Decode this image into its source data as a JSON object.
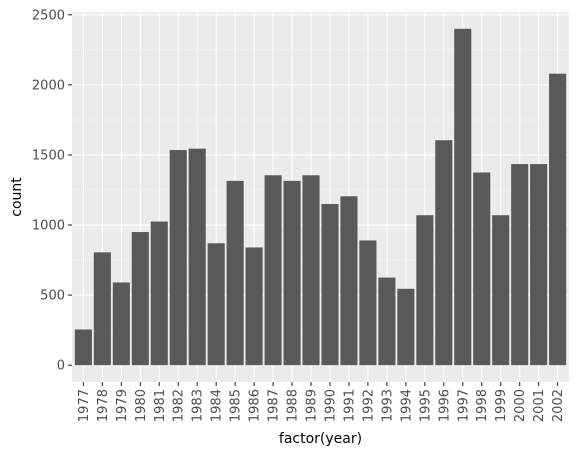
{
  "chart_data": {
    "type": "bar",
    "xlabel": "factor(year)",
    "ylabel": "count",
    "categories": [
      "1977",
      "1978",
      "1979",
      "1980",
      "1981",
      "1982",
      "1983",
      "1984",
      "1985",
      "1986",
      "1987",
      "1988",
      "1989",
      "1990",
      "1991",
      "1992",
      "1993",
      "1994",
      "1995",
      "1996",
      "1997",
      "1998",
      "1999",
      "2000",
      "2001",
      "2002"
    ],
    "values": [
      255,
      805,
      590,
      950,
      1025,
      1535,
      1545,
      870,
      1315,
      840,
      1355,
      1315,
      1355,
      1150,
      1205,
      890,
      625,
      545,
      1070,
      1605,
      2400,
      1375,
      1070,
      1435,
      1435,
      2080
    ],
    "y_ticks": [
      0,
      500,
      1000,
      1500,
      2000,
      2500
    ],
    "y_tick_labels": [
      "0",
      "500",
      "1000",
      "1500",
      "2000",
      "2500"
    ],
    "ylim": [
      -120,
      2520
    ],
    "grid": true,
    "colors": {
      "bar": "#595959",
      "panel": "#ebebeb",
      "grid_major": "#ffffff",
      "grid_minor": "#f5f5f5",
      "tick": "#333333"
    }
  }
}
